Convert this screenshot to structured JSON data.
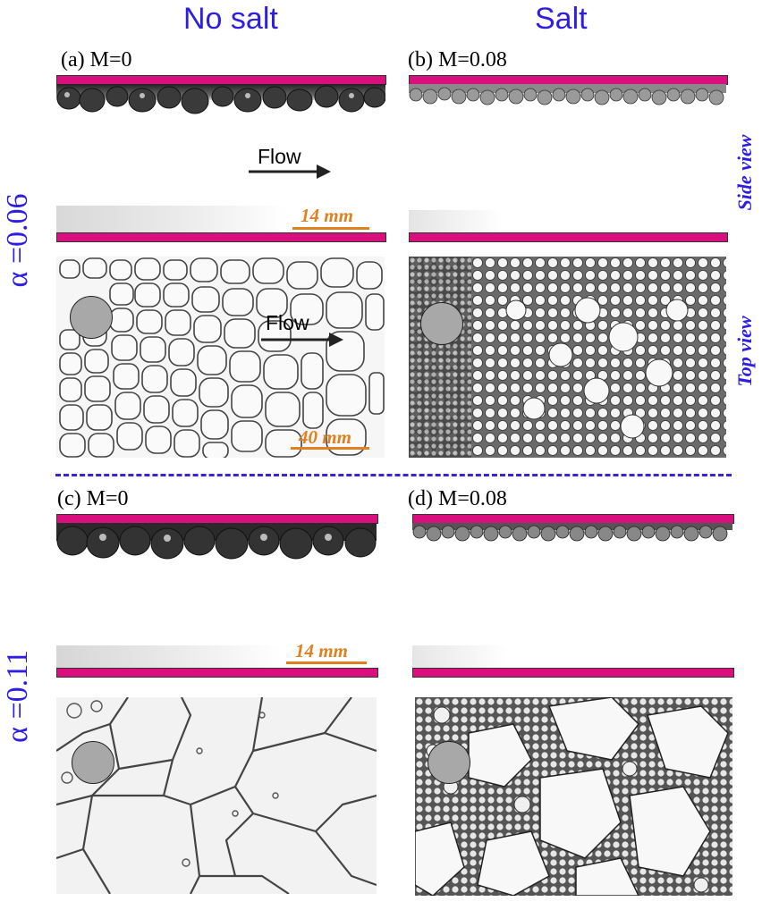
{
  "columns": {
    "left": "No salt",
    "right": "Salt"
  },
  "rows": {
    "top": "α =0.06",
    "bottom": "α =0.11"
  },
  "view_labels": {
    "side": "Side view",
    "top": "Top view"
  },
  "panels": {
    "a": "(a) M=0",
    "b": "(b) M=0.08",
    "c": "(c) M=0",
    "d": "(d) M=0.08"
  },
  "flow_label": "Flow",
  "scales": {
    "side": "14 mm",
    "top": "40 mm"
  },
  "colors": {
    "label_blue": "#2d1ee0",
    "plate_magenta": "#d80f7c",
    "scale_orange": "#e08020"
  }
}
